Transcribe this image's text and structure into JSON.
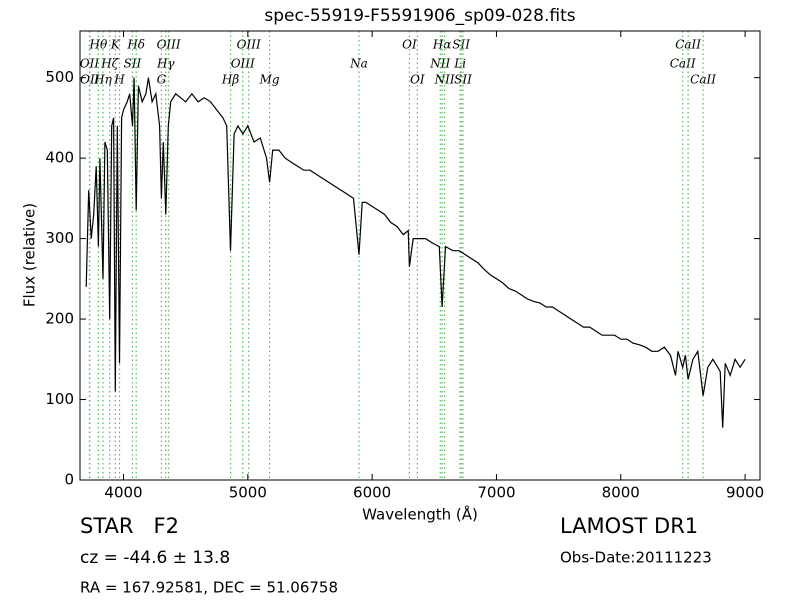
{
  "chart_data": {
    "type": "line",
    "title": "spec-55919-F5591906_sp09-028.fits",
    "xlabel": "Wavelength (Å)",
    "ylabel": "Flux (relative)",
    "color": "#000000",
    "line_color": "#55bb55",
    "xlim": [
      3650,
      9120
    ],
    "ylim": [
      0,
      558
    ],
    "xticks": [
      4000,
      5000,
      6000,
      7000,
      8000,
      9000
    ],
    "yticks": [
      0,
      100,
      200,
      300,
      400,
      500
    ],
    "x": [
      3700,
      3720,
      3740,
      3760,
      3780,
      3798,
      3810,
      3835,
      3850,
      3870,
      3889,
      3905,
      3920,
      3934,
      3950,
      3968,
      3985,
      4000,
      4030,
      4050,
      4072,
      4085,
      4102,
      4120,
      4150,
      4180,
      4200,
      4230,
      4260,
      4290,
      4305,
      4320,
      4340,
      4360,
      4380,
      4420,
      4460,
      4500,
      4550,
      4600,
      4650,
      4700,
      4750,
      4800,
      4830,
      4861,
      4890,
      4920,
      4960,
      5000,
      5050,
      5100,
      5150,
      5175,
      5200,
      5250,
      5300,
      5350,
      5400,
      5450,
      5500,
      5550,
      5600,
      5650,
      5700,
      5750,
      5800,
      5850,
      5894,
      5920,
      5950,
      6000,
      6050,
      6100,
      6150,
      6200,
      6250,
      6290,
      6300,
      6330,
      6380,
      6430,
      6480,
      6540,
      6563,
      6590,
      6650,
      6700,
      6750,
      6800,
      6850,
      6900,
      6950,
      7000,
      7050,
      7100,
      7150,
      7200,
      7250,
      7300,
      7350,
      7400,
      7450,
      7500,
      7550,
      7600,
      7650,
      7700,
      7750,
      7800,
      7850,
      7900,
      7950,
      8000,
      8050,
      8100,
      8150,
      8200,
      8250,
      8300,
      8350,
      8400,
      8440,
      8460,
      8498,
      8520,
      8542,
      8580,
      8620,
      8662,
      8700,
      8740,
      8780,
      8800,
      8820,
      8840,
      8880,
      8920,
      8960,
      9000
    ],
    "values": [
      240,
      360,
      300,
      330,
      390,
      290,
      400,
      250,
      420,
      410,
      200,
      440,
      450,
      110,
      440,
      145,
      450,
      460,
      470,
      480,
      440,
      500,
      335,
      490,
      470,
      480,
      500,
      470,
      480,
      440,
      350,
      420,
      330,
      440,
      470,
      480,
      475,
      470,
      480,
      470,
      475,
      470,
      460,
      450,
      440,
      285,
      430,
      440,
      430,
      440,
      420,
      425,
      400,
      370,
      410,
      410,
      400,
      395,
      390,
      385,
      385,
      380,
      375,
      370,
      365,
      360,
      355,
      350,
      280,
      345,
      345,
      340,
      335,
      330,
      320,
      315,
      305,
      310,
      265,
      300,
      300,
      300,
      295,
      290,
      215,
      290,
      285,
      285,
      280,
      275,
      270,
      262,
      255,
      250,
      245,
      238,
      235,
      230,
      225,
      222,
      220,
      215,
      215,
      210,
      205,
      200,
      195,
      190,
      190,
      185,
      180,
      180,
      180,
      175,
      175,
      170,
      168,
      165,
      160,
      160,
      165,
      155,
      130,
      160,
      140,
      155,
      125,
      150,
      160,
      105,
      140,
      150,
      140,
      135,
      65,
      145,
      130,
      150,
      140,
      150
    ],
    "lines": [
      {
        "label": "OII",
        "wavelength": 3726
      },
      {
        "label": "OII",
        "wavelength": 3729
      },
      {
        "label": "Hθ",
        "wavelength": 3798
      },
      {
        "label": "Hη",
        "wavelength": 3835
      },
      {
        "label": "Hζ",
        "wavelength": 3889
      },
      {
        "label": "K",
        "wavelength": 3934
      },
      {
        "label": "H",
        "wavelength": 3968
      },
      {
        "label": "SII",
        "wavelength": 4072
      },
      {
        "label": "Hδ",
        "wavelength": 4102
      },
      {
        "label": "G",
        "wavelength": 4305
      },
      {
        "label": "Hγ",
        "wavelength": 4340
      },
      {
        "label": "OIII",
        "wavelength": 4363
      },
      {
        "label": "Hβ",
        "wavelength": 4861
      },
      {
        "label": "OIII",
        "wavelength": 4959
      },
      {
        "label": "OIII",
        "wavelength": 5007
      },
      {
        "label": "Mg",
        "wavelength": 5175
      },
      {
        "label": "Na",
        "wavelength": 5894
      },
      {
        "label": "OI",
        "wavelength": 6300
      },
      {
        "label": "OI",
        "wavelength": 6364
      },
      {
        "label": "NII",
        "wavelength": 6548
      },
      {
        "label": "Hα",
        "wavelength": 6563
      },
      {
        "label": "NII",
        "wavelength": 6583
      },
      {
        "label": "Li",
        "wavelength": 6708
      },
      {
        "label": "SII",
        "wavelength": 6716
      },
      {
        "label": "SII",
        "wavelength": 6731
      },
      {
        "label": "CaII",
        "wavelength": 8498
      },
      {
        "label": "CaII",
        "wavelength": 8542
      },
      {
        "label": "CaII",
        "wavelength": 8662
      }
    ],
    "footer": {
      "object": "STAR   F2",
      "cz": "cz = -44.6 ± 13.8",
      "coords": "RA = 167.92581, DEC = 51.06758",
      "survey": "LAMOST DR1",
      "date": "Obs-Date:20111223"
    }
  }
}
